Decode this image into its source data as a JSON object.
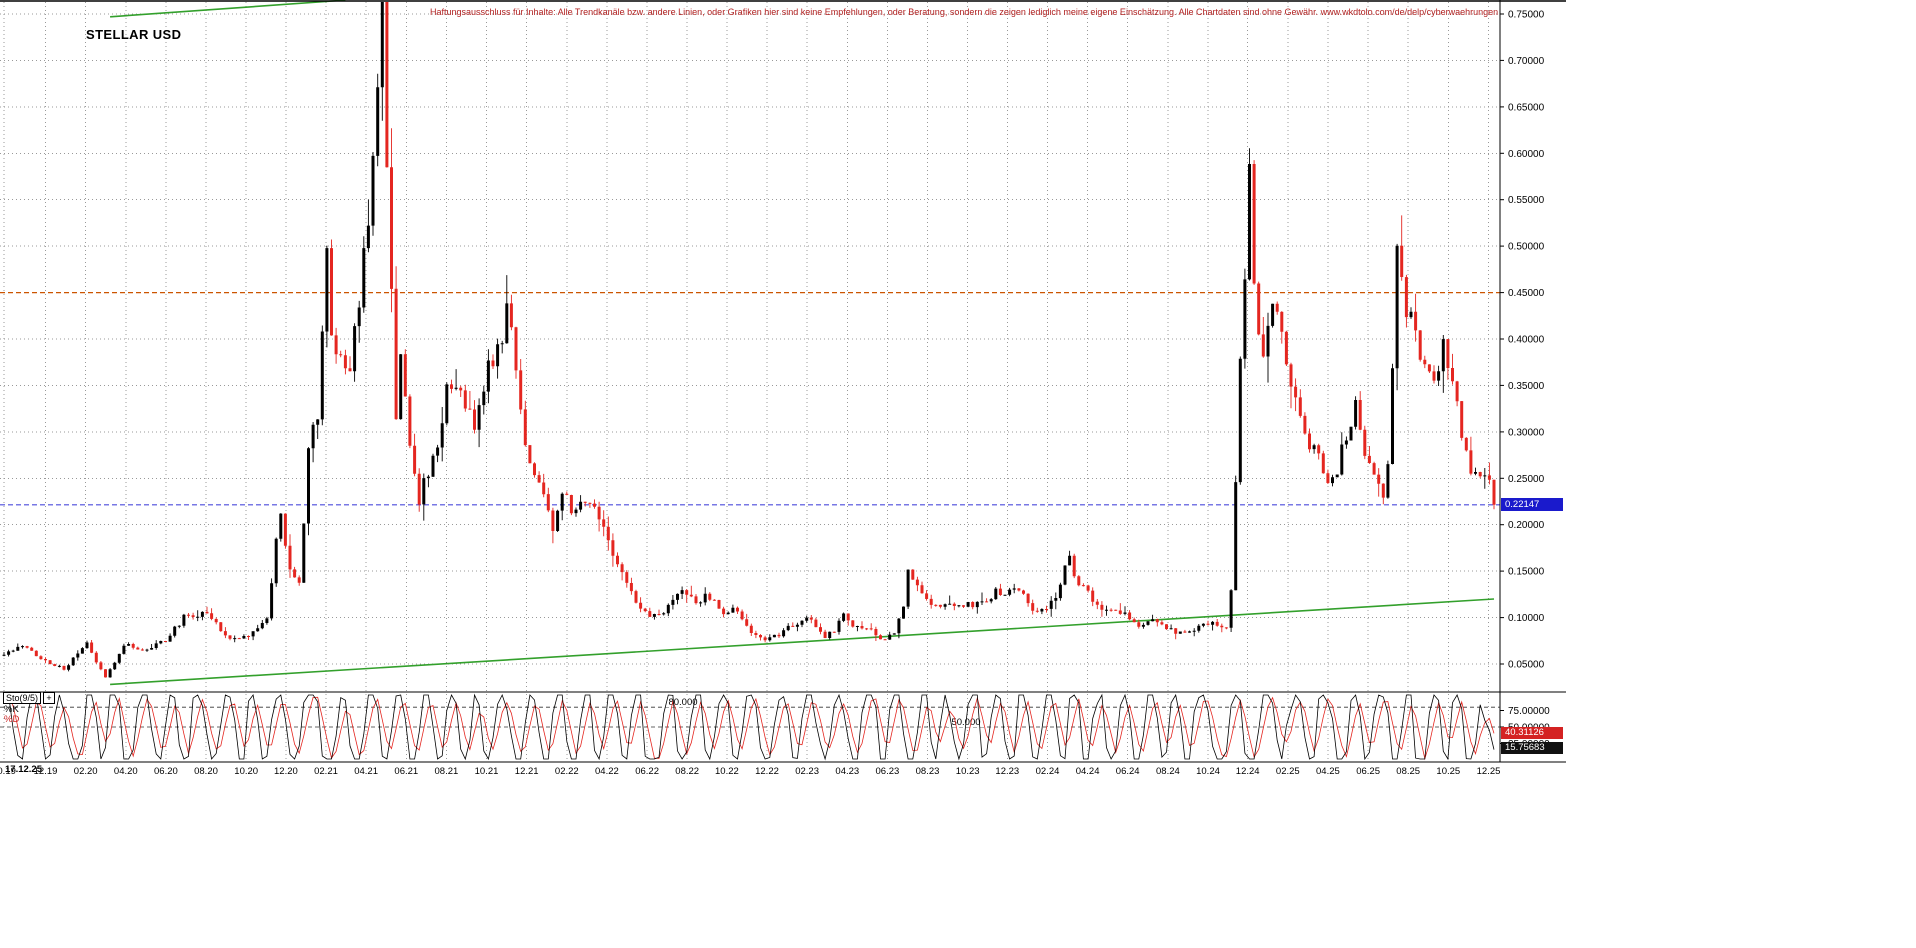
{
  "header": {
    "title": "STELLAR USD",
    "disclaimer": "Haftungsausschluss für Inhalte: Alle Trendkanäle bzw. andere Linien, oder Grafiken hier sind keine Empfehlungen, oder Beratung, sondern die zeigen lediglich meine eigene Einschätzung. Alle Chartdaten sind ohne Gewähr. www.wkdtolo.com/de/delp/cyberwaehrungen"
  },
  "axis": {
    "date_stamp": "17.12.25"
  },
  "price_axis": {
    "current_price_label": "0.22147"
  },
  "indicator": {
    "name": "Sto(9/5)",
    "plus": "+",
    "k_label": "%K",
    "d_label": "%D",
    "d_value": "40.31126",
    "k_value": "15.75683"
  },
  "chart_data": {
    "type": "candlestick",
    "symbol": "STELLAR USD",
    "current_price": 0.22147,
    "price_range": [
      0.05,
      0.75
    ],
    "price_tick_step": 0.05,
    "weeks_total": 323,
    "price_ticks": {
      "values": [
        0.75,
        0.7,
        0.65,
        0.6,
        0.55,
        0.5,
        0.45,
        0.4,
        0.35,
        0.3,
        0.25,
        0.2,
        0.15,
        0.1,
        0.05
      ],
      "labels": [
        "0.75000",
        "0.70000",
        "0.65000",
        "0.60000",
        "0.55000",
        "0.50000",
        "0.45000",
        "0.40000",
        "0.35000",
        "0.30000",
        "0.25000",
        "0.20000",
        "0.15000",
        "0.10000",
        "0.05000"
      ]
    },
    "date_ticks": [
      {
        "label": "10.19",
        "week": 0
      },
      {
        "label": "12.19",
        "week": 9
      },
      {
        "label": "02.20",
        "week": 17.7
      },
      {
        "label": "04.20",
        "week": 26.4
      },
      {
        "label": "06.20",
        "week": 35.1
      },
      {
        "label": "08.20",
        "week": 43.8
      },
      {
        "label": "10.20",
        "week": 52.5
      },
      {
        "label": "12.20",
        "week": 61.1
      },
      {
        "label": "02.21",
        "week": 69.8
      },
      {
        "label": "04.21",
        "week": 78.5
      },
      {
        "label": "06.21",
        "week": 87.2
      },
      {
        "label": "08.21",
        "week": 95.9
      },
      {
        "label": "10.21",
        "week": 104.6
      },
      {
        "label": "12.21",
        "week": 113.3
      },
      {
        "label": "02.22",
        "week": 122
      },
      {
        "label": "04.22",
        "week": 130.7
      },
      {
        "label": "06.22",
        "week": 139.4
      },
      {
        "label": "08.22",
        "week": 148.1
      },
      {
        "label": "10.22",
        "week": 156.7
      },
      {
        "label": "12.22",
        "week": 165.4
      },
      {
        "label": "02.23",
        "week": 174.1
      },
      {
        "label": "04.23",
        "week": 182.8
      },
      {
        "label": "06.23",
        "week": 191.5
      },
      {
        "label": "08.23",
        "week": 200.2
      },
      {
        "label": "10.23",
        "week": 208.9
      },
      {
        "label": "12.23",
        "week": 217.5
      },
      {
        "label": "02.24",
        "week": 226.2
      },
      {
        "label": "04.24",
        "week": 234.9
      },
      {
        "label": "06.24",
        "week": 243.6
      },
      {
        "label": "08.24",
        "week": 252.3
      },
      {
        "label": "10.24",
        "week": 261
      },
      {
        "label": "12.24",
        "week": 269.6
      },
      {
        "label": "02.25",
        "week": 278.3
      },
      {
        "label": "04.25",
        "week": 287
      },
      {
        "label": "06.25",
        "week": 295.7
      },
      {
        "label": "08.25",
        "week": 304.4
      },
      {
        "label": "10.25",
        "week": 313.1
      },
      {
        "label": "12.25",
        "week": 321.8
      }
    ],
    "anchors": [
      [
        0,
        0.062
      ],
      [
        4,
        0.072
      ],
      [
        7,
        0.058
      ],
      [
        9,
        0.055
      ],
      [
        13,
        0.046
      ],
      [
        18,
        0.072
      ],
      [
        22,
        0.038
      ],
      [
        26,
        0.066
      ],
      [
        31,
        0.07
      ],
      [
        35,
        0.075
      ],
      [
        39,
        0.1
      ],
      [
        44,
        0.105
      ],
      [
        48,
        0.076
      ],
      [
        53,
        0.082
      ],
      [
        57,
        0.1
      ],
      [
        59,
        0.185
      ],
      [
        60,
        0.22
      ],
      [
        62,
        0.16
      ],
      [
        64,
        0.135
      ],
      [
        66,
        0.27
      ],
      [
        68,
        0.32
      ],
      [
        70,
        0.5
      ],
      [
        71,
        0.42
      ],
      [
        73,
        0.4
      ],
      [
        75,
        0.37
      ],
      [
        77,
        0.45
      ],
      [
        79,
        0.55
      ],
      [
        81,
        0.66
      ],
      [
        82,
        0.735
      ],
      [
        83,
        0.6
      ],
      [
        84,
        0.44
      ],
      [
        85,
        0.32
      ],
      [
        86,
        0.38
      ],
      [
        88,
        0.3
      ],
      [
        90,
        0.24
      ],
      [
        92,
        0.26
      ],
      [
        94,
        0.3
      ],
      [
        96,
        0.35
      ],
      [
        98,
        0.37
      ],
      [
        100,
        0.33
      ],
      [
        102,
        0.3
      ],
      [
        104,
        0.36
      ],
      [
        106,
        0.38
      ],
      [
        109,
        0.43
      ],
      [
        111,
        0.36
      ],
      [
        113,
        0.3
      ],
      [
        115,
        0.26
      ],
      [
        117,
        0.22
      ],
      [
        119,
        0.2
      ],
      [
        121,
        0.22
      ],
      [
        123,
        0.21
      ],
      [
        125,
        0.22
      ],
      [
        127,
        0.235
      ],
      [
        129,
        0.22
      ],
      [
        131,
        0.195
      ],
      [
        133,
        0.155
      ],
      [
        135,
        0.13
      ],
      [
        137,
        0.12
      ],
      [
        139,
        0.115
      ],
      [
        141,
        0.105
      ],
      [
        143,
        0.11
      ],
      [
        146,
        0.12
      ],
      [
        148,
        0.125
      ],
      [
        150,
        0.11
      ],
      [
        152,
        0.12
      ],
      [
        154,
        0.115
      ],
      [
        156,
        0.11
      ],
      [
        158,
        0.115
      ],
      [
        160,
        0.1
      ],
      [
        162,
        0.085
      ],
      [
        164,
        0.08
      ],
      [
        166,
        0.078
      ],
      [
        168,
        0.082
      ],
      [
        170,
        0.09
      ],
      [
        172,
        0.092
      ],
      [
        174,
        0.095
      ],
      [
        176,
        0.088
      ],
      [
        178,
        0.082
      ],
      [
        180,
        0.088
      ],
      [
        182,
        0.1
      ],
      [
        184,
        0.095
      ],
      [
        186,
        0.088
      ],
      [
        188,
        0.085
      ],
      [
        190,
        0.08
      ],
      [
        193,
        0.085
      ],
      [
        195,
        0.12
      ],
      [
        196,
        0.165
      ],
      [
        197,
        0.15
      ],
      [
        199,
        0.135
      ],
      [
        201,
        0.12
      ],
      [
        203,
        0.115
      ],
      [
        205,
        0.12
      ],
      [
        207,
        0.11
      ],
      [
        209,
        0.112
      ],
      [
        211,
        0.115
      ],
      [
        213,
        0.12
      ],
      [
        215,
        0.128
      ],
      [
        217,
        0.125
      ],
      [
        219,
        0.13
      ],
      [
        221,
        0.125
      ],
      [
        223,
        0.115
      ],
      [
        226,
        0.115
      ],
      [
        228,
        0.12
      ],
      [
        230,
        0.15
      ],
      [
        231,
        0.16
      ],
      [
        233,
        0.135
      ],
      [
        235,
        0.125
      ],
      [
        237,
        0.115
      ],
      [
        239,
        0.11
      ],
      [
        241,
        0.105
      ],
      [
        243,
        0.1
      ],
      [
        245,
        0.095
      ],
      [
        247,
        0.09
      ],
      [
        249,
        0.1
      ],
      [
        251,
        0.095
      ],
      [
        253,
        0.088
      ],
      [
        255,
        0.085
      ],
      [
        257,
        0.09
      ],
      [
        259,
        0.095
      ],
      [
        261,
        0.092
      ],
      [
        263,
        0.09
      ],
      [
        265,
        0.095
      ],
      [
        266,
        0.13
      ],
      [
        267,
        0.24
      ],
      [
        268,
        0.38
      ],
      [
        269,
        0.47
      ],
      [
        270,
        0.565
      ],
      [
        271,
        0.46
      ],
      [
        272,
        0.42
      ],
      [
        273,
        0.4
      ],
      [
        274,
        0.44
      ],
      [
        275,
        0.475
      ],
      [
        277,
        0.43
      ],
      [
        279,
        0.36
      ],
      [
        281,
        0.33
      ],
      [
        283,
        0.3
      ],
      [
        285,
        0.27
      ],
      [
        287,
        0.24
      ],
      [
        289,
        0.26
      ],
      [
        291,
        0.3
      ],
      [
        293,
        0.325
      ],
      [
        295,
        0.28
      ],
      [
        297,
        0.25
      ],
      [
        299,
        0.235
      ],
      [
        300,
        0.28
      ],
      [
        301,
        0.4
      ],
      [
        302,
        0.5
      ],
      [
        304,
        0.45
      ],
      [
        306,
        0.42
      ],
      [
        308,
        0.375
      ],
      [
        310,
        0.36
      ],
      [
        312,
        0.4
      ],
      [
        314,
        0.345
      ],
      [
        316,
        0.3
      ],
      [
        318,
        0.27
      ],
      [
        320,
        0.25
      ],
      [
        322,
        0.235
      ],
      [
        323,
        0.22147
      ]
    ],
    "trendlines": [
      {
        "name": "support-trendline",
        "from": [
          23,
          0.028
        ],
        "to": [
          323,
          0.12
        ]
      },
      {
        "name": "upper-trendline",
        "from": [
          23,
          0.747
        ],
        "to": [
          74,
          0.765
        ]
      }
    ],
    "hlines": [
      {
        "price": 0.45,
        "color": "#cc5500",
        "style": "dashed"
      },
      {
        "price": 0.22147,
        "color": "#4b4bdc",
        "style": "dashed"
      }
    ],
    "colors": {
      "up": "#000000",
      "down": "#e42620",
      "trend": "#33a02c",
      "current_price_box": "#1a1acc",
      "d_value_box": "#d42222",
      "k_value_box": "#111111",
      "disclaimer": "#b22222",
      "grid": "#999999"
    },
    "stochastic": {
      "name": "Sto(9/5)",
      "k_last": 15.75683,
      "d_last": 40.31126,
      "levels": [
        80,
        50
      ],
      "level_labels": [
        "80.000",
        "50.000"
      ],
      "axis_ticks": {
        "values": [
          75,
          50,
          25
        ],
        "labels": [
          "75.00000",
          "50.00000",
          "25.00000"
        ]
      },
      "range": [
        0,
        100
      ]
    }
  }
}
